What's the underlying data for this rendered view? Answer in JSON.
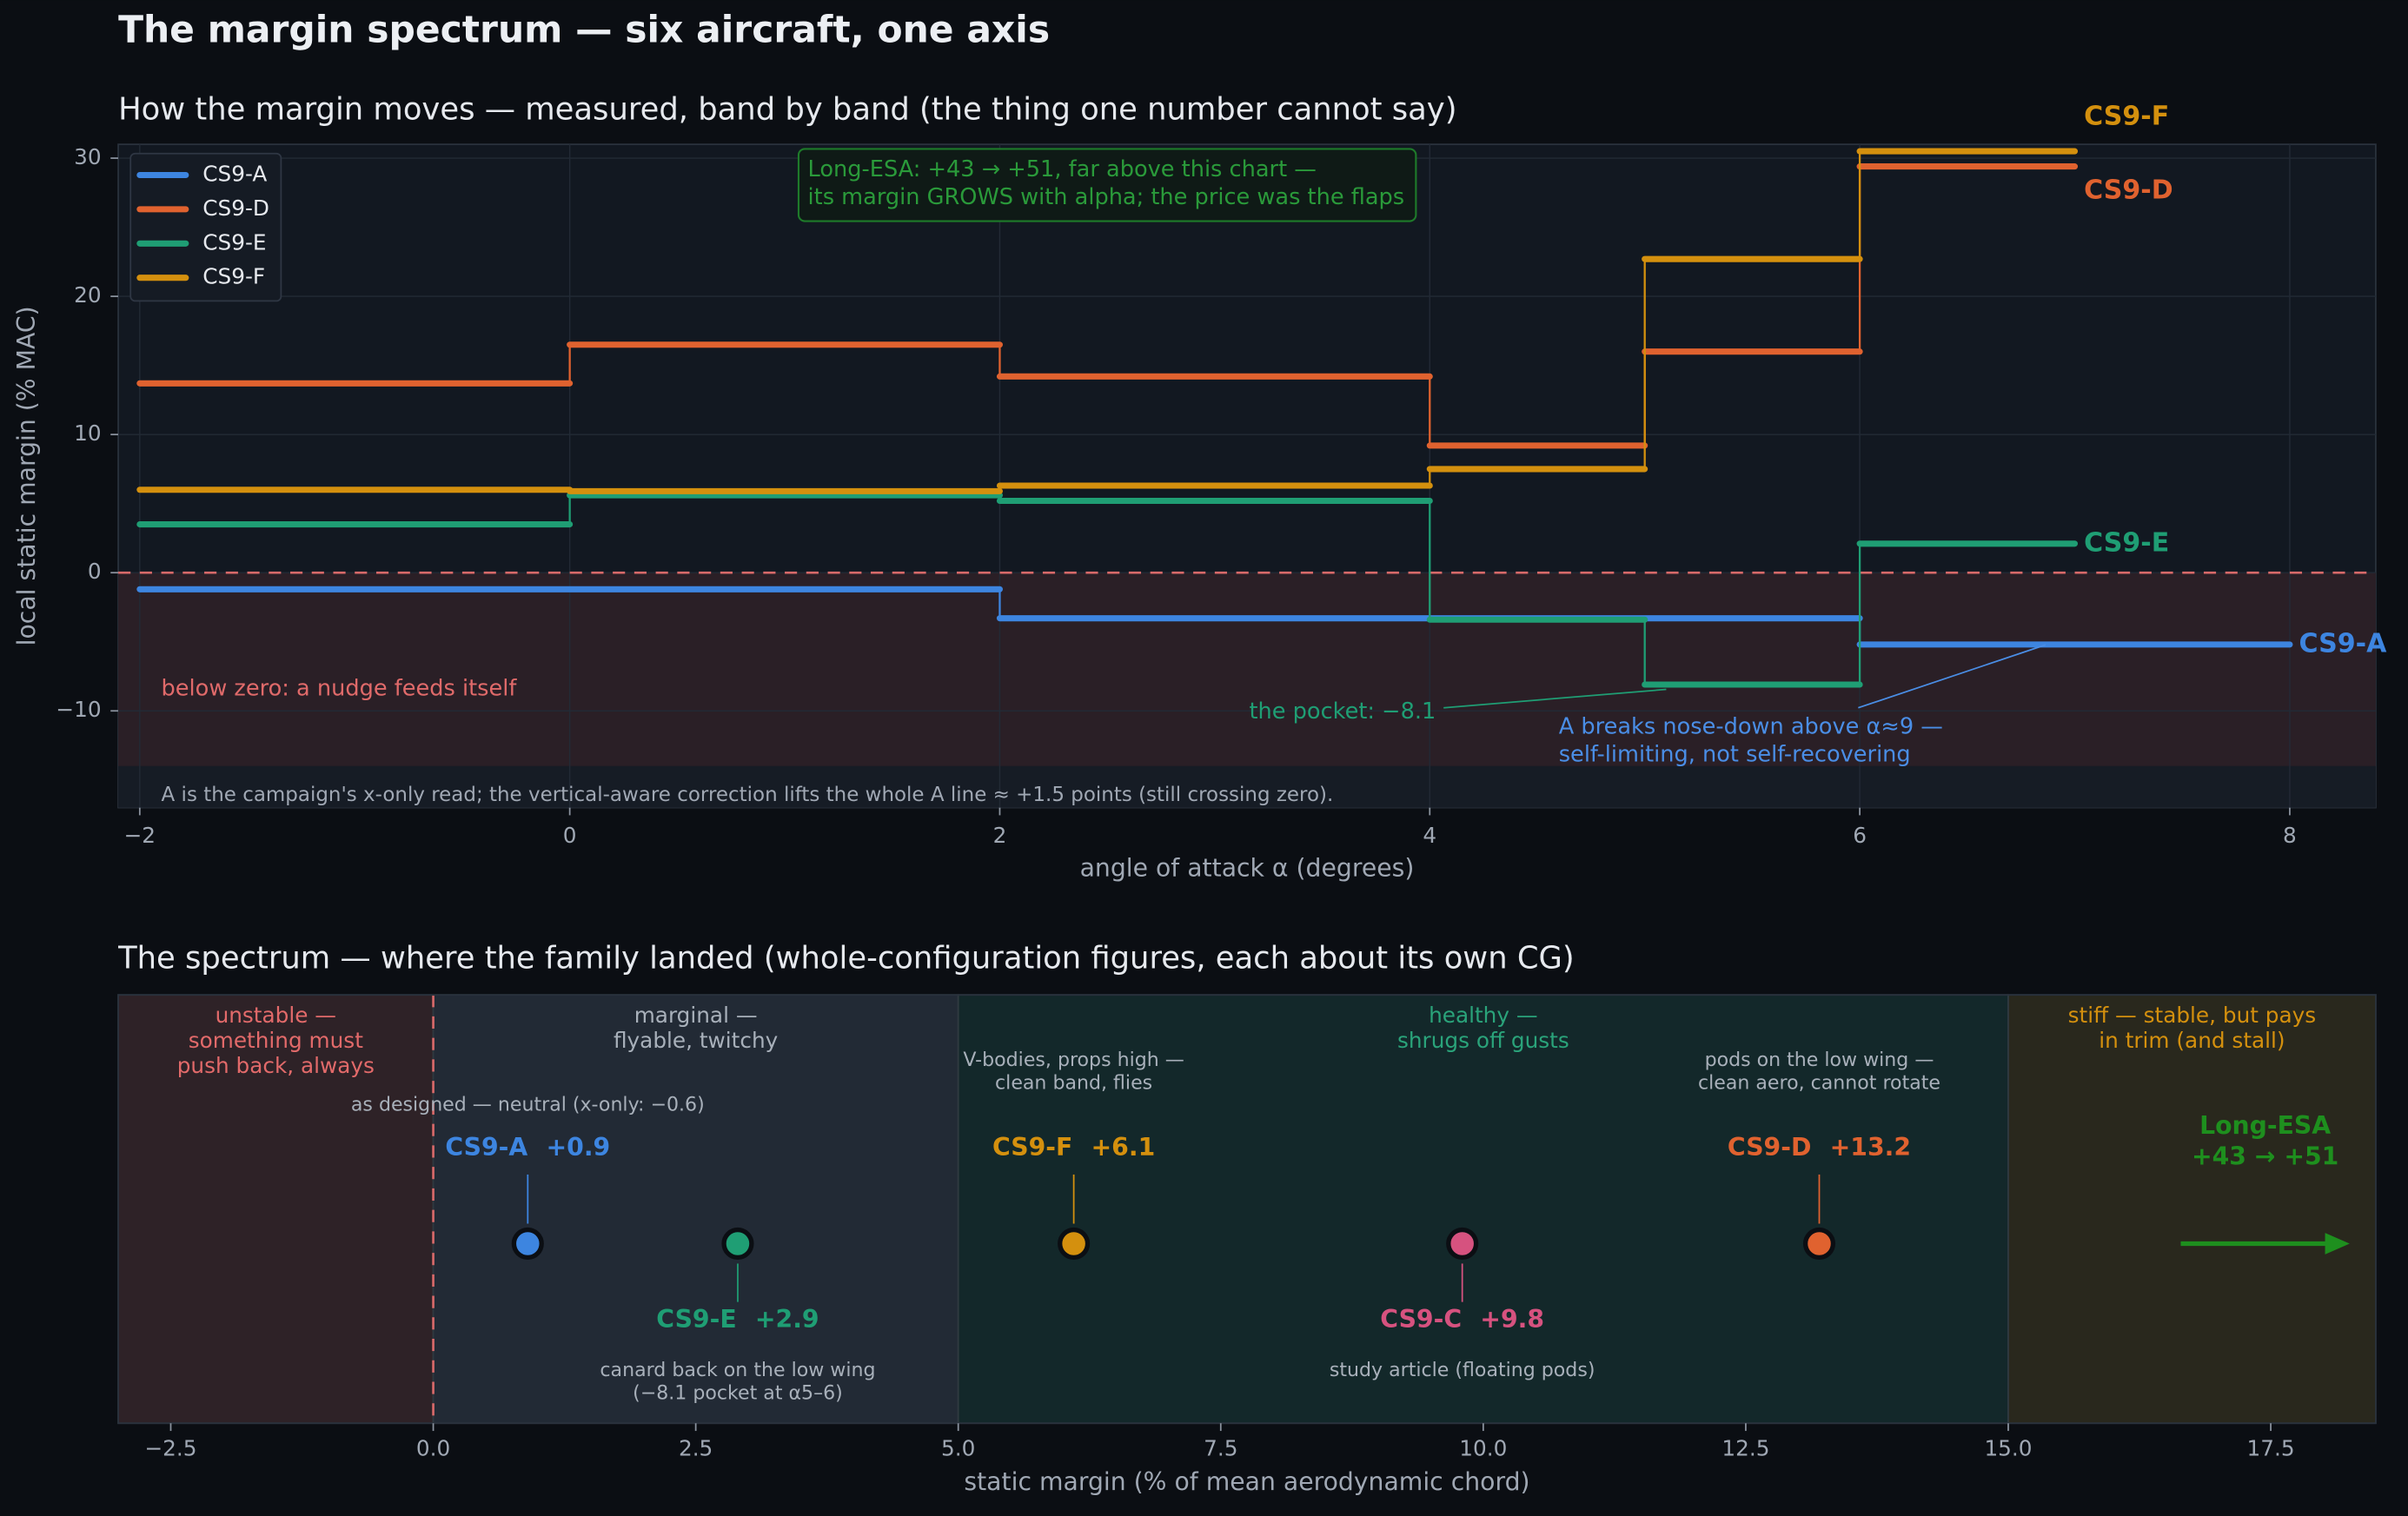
{
  "title": "The margin spectrum — six aircraft, one axis",
  "chart_data": [
    {
      "type": "step",
      "title": "How the margin moves — measured, band by band (the thing one number cannot say)",
      "xlabel": "angle of attack α (degrees)",
      "ylabel": "local static margin (% MAC)",
      "xlim": [
        -2.1,
        8.4
      ],
      "ylim": [
        -17,
        31
      ],
      "xticks": [
        {
          "value": -2,
          "label": "−2"
        },
        0,
        2,
        4,
        6,
        8
      ],
      "yticks": [
        {
          "value": -10,
          "label": "−10"
        },
        0,
        10,
        20,
        30
      ],
      "grid": true,
      "legend": "upper left",
      "series": [
        {
          "name": "CS9-A",
          "color": "#3d85e0",
          "edges": [
            -2,
            2,
            6,
            8
          ],
          "values": [
            -1.2,
            -3.3,
            -5.2
          ]
        },
        {
          "name": "CS9-D",
          "color": "#e0622f",
          "edges": [
            -2,
            0,
            2,
            4,
            5,
            6,
            7
          ],
          "values": [
            13.7,
            16.5,
            14.2,
            9.2,
            16.0,
            29.4
          ]
        },
        {
          "name": "CS9-E",
          "color": "#1f9e74",
          "edges": [
            -2,
            0,
            2,
            4,
            5,
            6,
            7
          ],
          "values": [
            3.5,
            5.6,
            5.2,
            -3.4,
            -8.1,
            2.1
          ]
        },
        {
          "name": "CS9-F",
          "color": "#d4900e",
          "edges": [
            -2,
            0,
            2,
            4,
            5,
            6,
            7
          ],
          "values": [
            6.0,
            5.9,
            6.3,
            7.5,
            22.7,
            30.5
          ]
        }
      ],
      "annotations": [
        {
          "lines": [
            "Long-ESA: +43 → +51, far above this chart —",
            "its margin GROWS with alpha; the price was the flaps"
          ],
          "color": "#2a9a3a"
        },
        {
          "lines": [
            "below zero: a nudge feeds itself"
          ],
          "color": "#e06a6a"
        },
        {
          "lines": [
            "the pocket: −8.1"
          ],
          "color": "#1f9e74"
        },
        {
          "lines": [
            "A breaks nose-down above α≈9 —",
            "self-limiting, not self-recovering"
          ],
          "color": "#4a8ee6"
        },
        {
          "lines": [
            "A is the campaign's x-only read; the vertical-aware correction lifts the whole A line ≈ +1.5 points (still crossing zero)."
          ],
          "color": "#a0a8b4"
        }
      ]
    },
    {
      "type": "strip",
      "title": "The spectrum — where the family landed (whole-configuration figures, each about its own CG)",
      "xlabel": "static margin (% of mean aerodynamic chord)",
      "xlim": [
        -3,
        18.5
      ],
      "xticks": [
        {
          "value": -2.5,
          "label": "−2.5"
        },
        {
          "value": 0,
          "label": "0.0"
        },
        2.5,
        {
          "value": 5,
          "label": "5.0"
        },
        7.5,
        {
          "value": 10,
          "label": "10.0"
        },
        12.5,
        {
          "value": 15,
          "label": "15.0"
        },
        17.5
      ],
      "zones": [
        {
          "label": [
            "unstable —",
            "something must",
            "push back, always"
          ],
          "from": -3,
          "to": 0,
          "color": "#2e2227",
          "text_color": "#e26a6a"
        },
        {
          "label": [
            "marginal —",
            "flyable, twitchy"
          ],
          "from": 0,
          "to": 5,
          "color": "#222a35",
          "text_color": "#a8b0ba"
        },
        {
          "label": [
            "healthy —",
            "shrugs off gusts"
          ],
          "from": 5,
          "to": 15,
          "color": "#13282a",
          "text_color": "#2aa37a"
        },
        {
          "label": [
            "stiff — stable, but pays",
            "in trim (and stall)"
          ],
          "from": 15,
          "to": 18.5,
          "color": "#29281d",
          "text_color": "#d4900e"
        }
      ],
      "points": [
        {
          "name": "CS9-A",
          "value": 0.9,
          "value_label": "+0.9",
          "color": "#3d85e0",
          "note": [
            "as designed — neutral (x-only: −0.6)"
          ]
        },
        {
          "name": "CS9-E",
          "value": 2.9,
          "value_label": "+2.9",
          "color": "#1f9e74",
          "note": [
            "canard back on the low wing",
            "(−8.1 pocket at α5–6)"
          ]
        },
        {
          "name": "CS9-F",
          "value": 6.1,
          "value_label": "+6.1",
          "color": "#d4900e",
          "note": [
            "V-bodies, props high —",
            "clean band, flies"
          ]
        },
        {
          "name": "CS9-C",
          "value": 9.8,
          "value_label": "+9.8",
          "color": "#d6527f",
          "note": [
            "study article (floating pods)"
          ]
        },
        {
          "name": "CS9-D",
          "value": 13.2,
          "value_label": "+13.2",
          "color": "#e0622f",
          "note": [
            "pods on the low wing —",
            "clean aero, cannot rotate"
          ]
        }
      ],
      "offscale": {
        "name": "Long-ESA",
        "label": "+43 → +51",
        "color": "#1e8f1e"
      }
    }
  ]
}
